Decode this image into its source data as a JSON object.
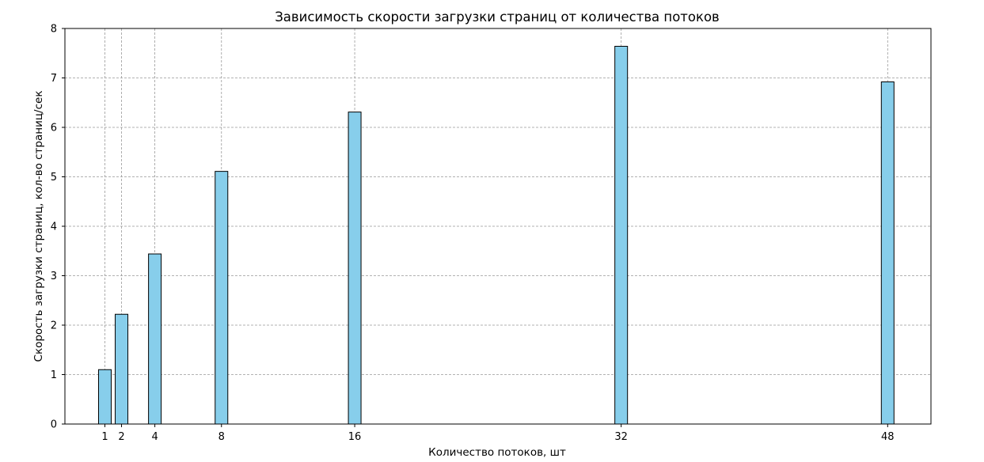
{
  "chart_data": {
    "type": "bar",
    "title": "Зависимость скорости загрузки страниц от количества потоков",
    "xlabel": "Количество потоков, шт",
    "ylabel": "Скорость загрузки страниц, кол-во страниц/сек",
    "x": [
      1,
      2,
      4,
      8,
      16,
      32,
      48
    ],
    "x_tick_labels": [
      "1",
      "2",
      "4",
      "8",
      "16",
      "32",
      "48"
    ],
    "values": [
      1.1,
      2.22,
      3.44,
      5.11,
      6.31,
      7.64,
      6.92
    ],
    "ylim": [
      0,
      8
    ],
    "xlim": [
      -1.4,
      50.6
    ],
    "y_ticks": [
      0,
      1,
      2,
      3,
      4,
      5,
      6,
      7,
      8
    ],
    "grid": true,
    "bar_color": "#87ceeb",
    "bar_edge_color": "#000000",
    "grid_color": "#999999"
  }
}
